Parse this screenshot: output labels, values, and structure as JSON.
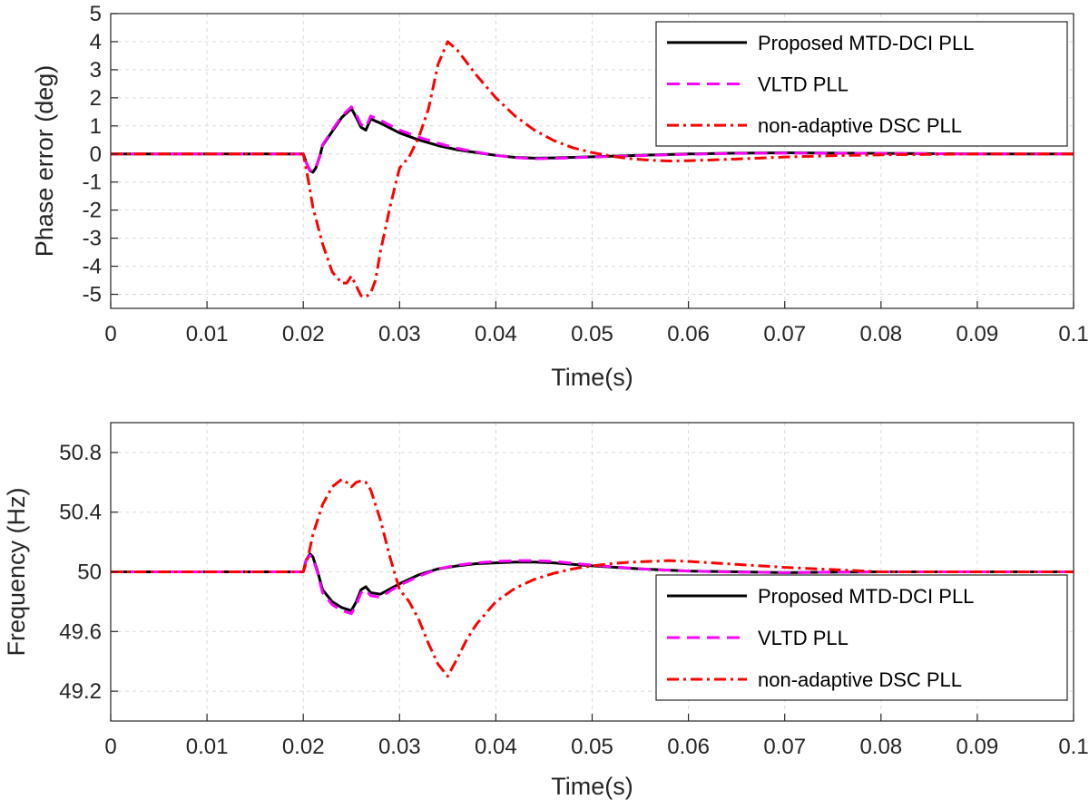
{
  "chart_data": [
    {
      "type": "line",
      "title": "",
      "xlabel": "Time(s)",
      "ylabel": "Phase error (deg)",
      "xlim": [
        0,
        0.1
      ],
      "ylim": [
        -5.5,
        5
      ],
      "xticks": [
        0,
        0.01,
        0.02,
        0.03,
        0.04,
        0.05,
        0.06,
        0.07,
        0.08,
        0.09,
        0.1
      ],
      "xtick_labels": [
        "0",
        "0.01",
        "0.02",
        "0.03",
        "0.04",
        "0.05",
        "0.06",
        "0.07",
        "0.08",
        "0.09",
        "0.1"
      ],
      "yticks": [
        -5,
        -4,
        -3,
        -2,
        -1,
        0,
        1,
        2,
        3,
        4,
        5
      ],
      "ytick_labels": [
        "-5",
        "-4",
        "-3",
        "-2",
        "-1",
        "0",
        "1",
        "2",
        "3",
        "4",
        "5"
      ],
      "grid": true,
      "legend_position": "top-right",
      "series": [
        {
          "name": "Proposed MTD-DCI PLL",
          "color": "#000000",
          "style": "solid",
          "x": [
            0,
            0.02,
            0.0203,
            0.0207,
            0.021,
            0.0213,
            0.0217,
            0.022,
            0.023,
            0.024,
            0.025,
            0.0255,
            0.026,
            0.0265,
            0.027,
            0.028,
            0.03,
            0.032,
            0.034,
            0.036,
            0.038,
            0.04,
            0.042,
            0.044,
            0.046,
            0.05,
            0.055,
            0.06,
            0.065,
            0.07,
            0.08,
            0.09,
            0.1
          ],
          "y": [
            0,
            0,
            -0.3,
            -0.6,
            -0.65,
            -0.5,
            -0.1,
            0.3,
            0.8,
            1.3,
            1.62,
            1.3,
            0.95,
            0.85,
            1.25,
            1.1,
            0.75,
            0.5,
            0.3,
            0.15,
            0.05,
            -0.05,
            -0.12,
            -0.15,
            -0.14,
            -0.1,
            -0.05,
            0.0,
            0.03,
            0.04,
            0.02,
            0.0,
            0.0
          ]
        },
        {
          "name": "VLTD PLL",
          "color": "#ff00ff",
          "style": "dashed",
          "x": [
            0,
            0.02,
            0.0203,
            0.0207,
            0.021,
            0.0213,
            0.0217,
            0.022,
            0.023,
            0.024,
            0.025,
            0.0255,
            0.026,
            0.0265,
            0.027,
            0.028,
            0.03,
            0.032,
            0.034,
            0.036,
            0.038,
            0.04,
            0.042,
            0.044,
            0.046,
            0.05,
            0.055,
            0.06,
            0.065,
            0.07,
            0.08,
            0.09,
            0.1
          ],
          "y": [
            0,
            0,
            -0.3,
            -0.58,
            -0.62,
            -0.48,
            -0.08,
            0.32,
            0.85,
            1.35,
            1.68,
            1.4,
            1.05,
            0.95,
            1.35,
            1.2,
            0.85,
            0.6,
            0.38,
            0.2,
            0.07,
            -0.05,
            -0.13,
            -0.17,
            -0.16,
            -0.11,
            -0.06,
            -0.01,
            0.02,
            0.03,
            0.02,
            0.0,
            0.0
          ]
        },
        {
          "name": "non-adaptive DSC PLL",
          "color": "#ff0000",
          "style": "dashdot",
          "x": [
            0,
            0.02,
            0.0205,
            0.021,
            0.022,
            0.023,
            0.024,
            0.0245,
            0.025,
            0.0255,
            0.026,
            0.0265,
            0.027,
            0.0275,
            0.028,
            0.029,
            0.03,
            0.031,
            0.032,
            0.033,
            0.034,
            0.035,
            0.036,
            0.038,
            0.04,
            0.042,
            0.044,
            0.046,
            0.048,
            0.05,
            0.052,
            0.054,
            0.056,
            0.058,
            0.06,
            0.065,
            0.07,
            0.075,
            0.08,
            0.09,
            0.1
          ],
          "y": [
            0,
            0,
            -0.9,
            -1.9,
            -3.2,
            -4.2,
            -4.6,
            -4.6,
            -4.35,
            -4.7,
            -5.05,
            -5.1,
            -4.95,
            -4.5,
            -3.5,
            -1.9,
            -0.5,
            -0.1,
            0.6,
            1.6,
            3.2,
            4.0,
            3.7,
            2.8,
            2.0,
            1.35,
            0.85,
            0.48,
            0.22,
            0.05,
            -0.08,
            -0.17,
            -0.22,
            -0.25,
            -0.24,
            -0.18,
            -0.11,
            -0.06,
            -0.03,
            0.0,
            0.0
          ]
        }
      ]
    },
    {
      "type": "line",
      "title": "",
      "xlabel": "Time(s)",
      "ylabel": "Frequency (Hz)",
      "xlim": [
        0,
        0.1
      ],
      "ylim": [
        49,
        51
      ],
      "xticks": [
        0,
        0.01,
        0.02,
        0.03,
        0.04,
        0.05,
        0.06,
        0.07,
        0.08,
        0.09,
        0.1
      ],
      "xtick_labels": [
        "0",
        "0.01",
        "0.02",
        "0.03",
        "0.04",
        "0.05",
        "0.06",
        "0.07",
        "0.08",
        "0.09",
        "0.1"
      ],
      "yticks": [
        49.2,
        49.6,
        50,
        50.4,
        50.8
      ],
      "ytick_labels": [
        "49.2",
        "49.6",
        "50",
        "50.4",
        "50.8"
      ],
      "grid": true,
      "legend_position": "bottom-right",
      "series": [
        {
          "name": "Proposed MTD-DCI PLL",
          "color": "#000000",
          "style": "solid",
          "x": [
            0,
            0.02,
            0.0203,
            0.0207,
            0.021,
            0.0215,
            0.022,
            0.023,
            0.024,
            0.025,
            0.0255,
            0.026,
            0.0265,
            0.027,
            0.028,
            0.03,
            0.032,
            0.034,
            0.036,
            0.038,
            0.04,
            0.042,
            0.044,
            0.046,
            0.05,
            0.055,
            0.06,
            0.065,
            0.07,
            0.08,
            0.09,
            0.1
          ],
          "y": [
            50,
            50,
            50.08,
            50.12,
            50.1,
            50.0,
            49.88,
            49.8,
            49.76,
            49.74,
            49.8,
            49.88,
            49.9,
            49.86,
            49.85,
            49.92,
            49.98,
            50.02,
            50.04,
            50.055,
            50.06,
            50.065,
            50.065,
            50.06,
            50.04,
            50.02,
            50.005,
            50.0,
            49.995,
            50.0,
            50.0,
            50.0
          ]
        },
        {
          "name": "VLTD PLL",
          "color": "#ff00ff",
          "style": "dashed",
          "x": [
            0,
            0.02,
            0.0203,
            0.0207,
            0.021,
            0.0215,
            0.022,
            0.023,
            0.024,
            0.025,
            0.0255,
            0.026,
            0.0265,
            0.027,
            0.028,
            0.03,
            0.032,
            0.034,
            0.036,
            0.038,
            0.04,
            0.042,
            0.044,
            0.046,
            0.05,
            0.055,
            0.06,
            0.065,
            0.07,
            0.08,
            0.09,
            0.1
          ],
          "y": [
            50,
            50,
            50.08,
            50.11,
            50.09,
            49.99,
            49.86,
            49.78,
            49.74,
            49.72,
            49.78,
            49.86,
            49.88,
            49.84,
            49.83,
            49.91,
            49.97,
            50.02,
            50.045,
            50.06,
            50.07,
            50.075,
            50.075,
            50.07,
            50.045,
            50.02,
            50.005,
            49.998,
            49.995,
            50.0,
            50.0,
            50.0
          ]
        },
        {
          "name": "non-adaptive DSC PLL",
          "color": "#ff0000",
          "style": "dashdot",
          "x": [
            0,
            0.02,
            0.0205,
            0.021,
            0.022,
            0.023,
            0.024,
            0.0245,
            0.025,
            0.0255,
            0.026,
            0.0265,
            0.027,
            0.028,
            0.029,
            0.03,
            0.031,
            0.032,
            0.033,
            0.034,
            0.035,
            0.036,
            0.037,
            0.038,
            0.04,
            0.042,
            0.044,
            0.046,
            0.048,
            0.05,
            0.052,
            0.054,
            0.056,
            0.058,
            0.06,
            0.065,
            0.07,
            0.075,
            0.08,
            0.09,
            0.1
          ],
          "y": [
            50,
            50,
            50.1,
            50.25,
            50.45,
            50.57,
            50.62,
            50.6,
            50.57,
            50.6,
            50.61,
            50.6,
            50.55,
            50.35,
            50.1,
            49.88,
            49.8,
            49.68,
            49.52,
            49.38,
            49.3,
            49.42,
            49.55,
            49.65,
            49.8,
            49.89,
            49.95,
            49.99,
            50.02,
            50.04,
            50.055,
            50.065,
            50.07,
            50.075,
            50.07,
            50.05,
            50.03,
            50.015,
            50.0,
            50.0,
            50.0
          ]
        }
      ]
    }
  ]
}
